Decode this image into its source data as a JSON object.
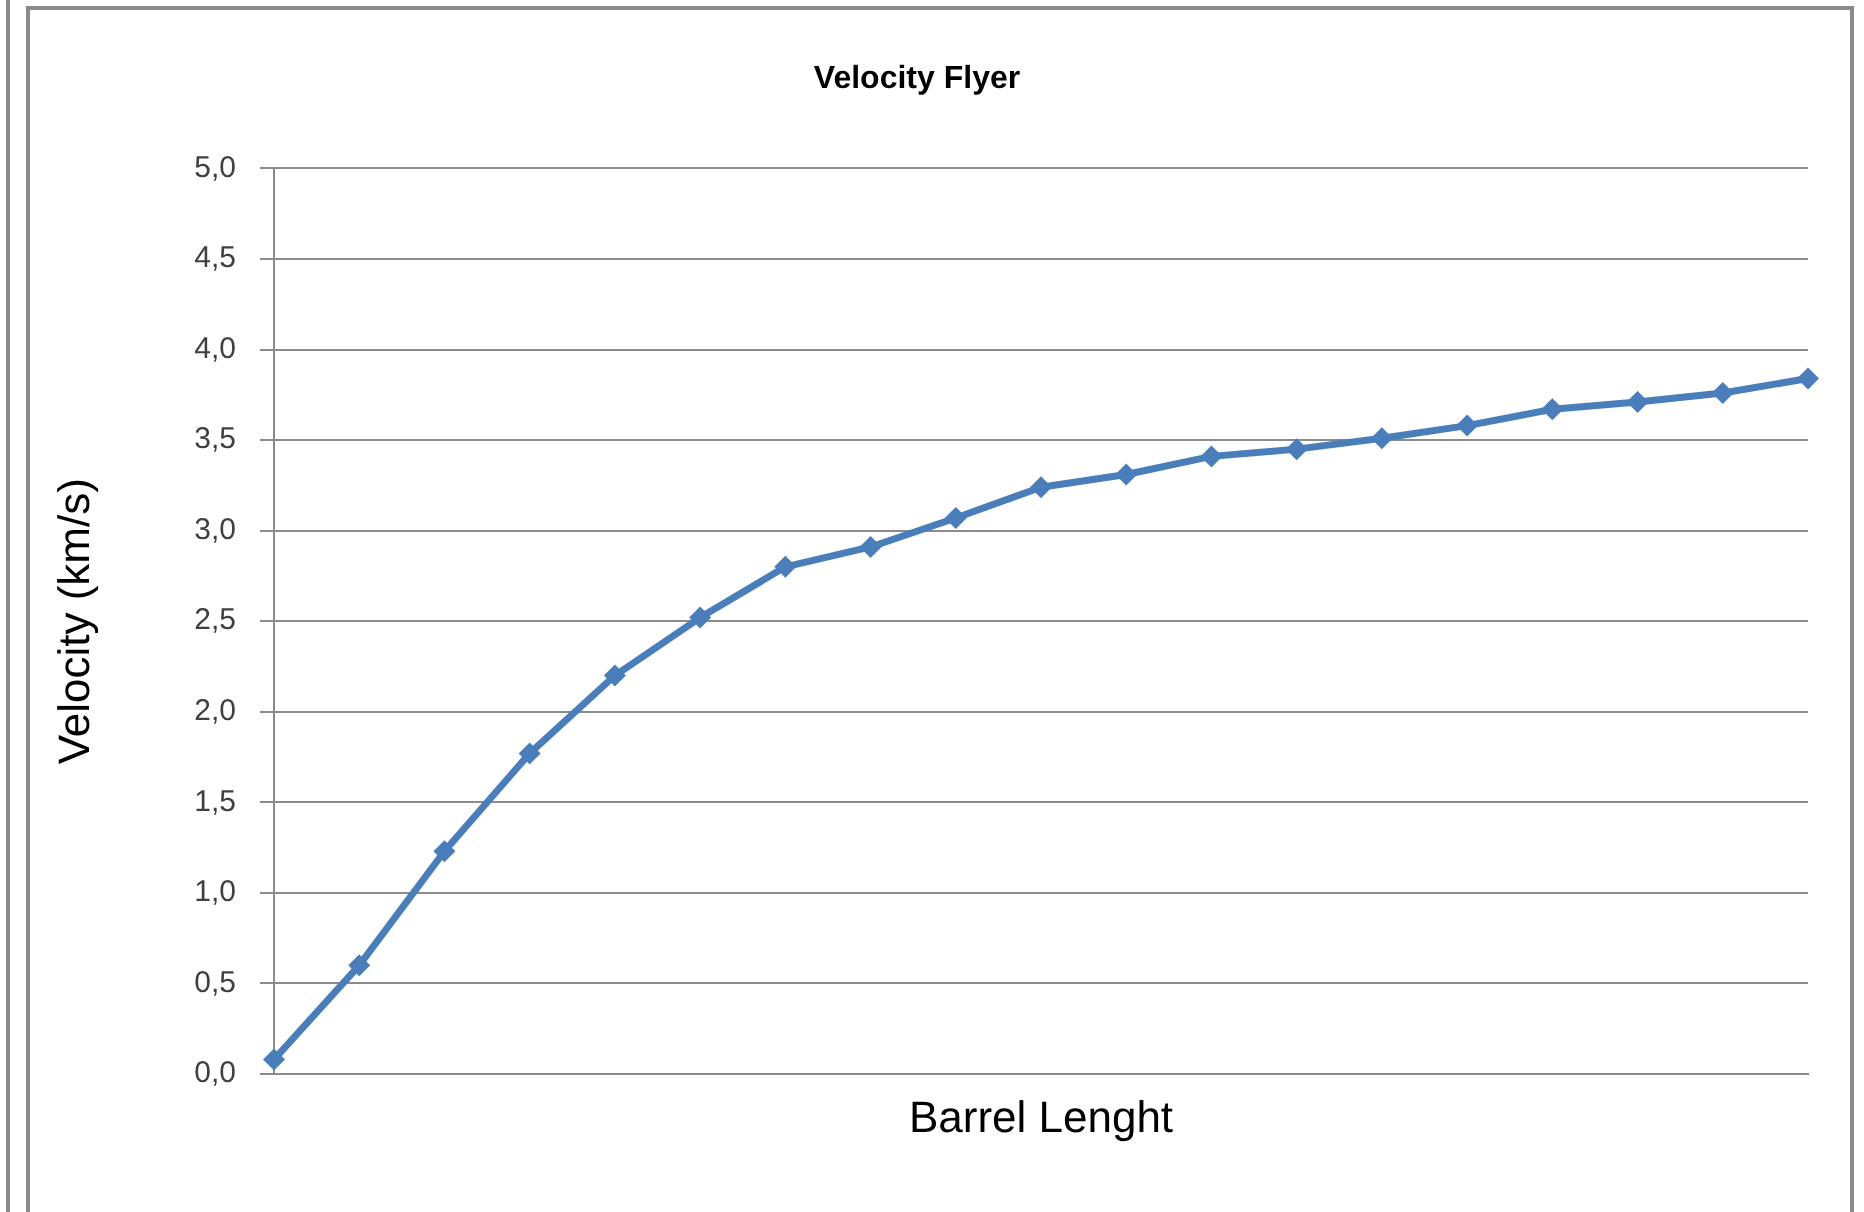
{
  "chart_data": {
    "type": "line",
    "title": "Velocity Flyer",
    "xlabel": "Barrel Lenght",
    "ylabel": "Velocity (km/s)",
    "categories": [
      null,
      null,
      null,
      null,
      null,
      null,
      null,
      null,
      null,
      null,
      null,
      null,
      null,
      null,
      null,
      null,
      null,
      null,
      null
    ],
    "values": [
      0.08,
      0.6,
      1.23,
      1.77,
      2.2,
      2.52,
      2.8,
      2.91,
      3.07,
      3.24,
      3.31,
      3.41,
      3.45,
      3.51,
      3.58,
      3.67,
      3.71,
      3.76,
      3.84
    ],
    "color": "#4a7ebb",
    "ylim": [
      0,
      5
    ],
    "yticks": [
      {
        "value": 0,
        "label": "0,0"
      },
      {
        "value": 0.5,
        "label": "0,5"
      },
      {
        "value": 1,
        "label": "1,0"
      },
      {
        "value": 1.5,
        "label": "1,5"
      },
      {
        "value": 2,
        "label": "2,0"
      },
      {
        "value": 2.5,
        "label": "2,5"
      },
      {
        "value": 3,
        "label": "3,0"
      },
      {
        "value": 3.5,
        "label": "3,5"
      },
      {
        "value": 4,
        "label": "4,0"
      },
      {
        "value": 4.5,
        "label": "4,5"
      },
      {
        "value": 5,
        "label": "5,0"
      }
    ],
    "grid": "y",
    "tick_labels": "y",
    "marker": "diamond",
    "line_style": "solid"
  }
}
